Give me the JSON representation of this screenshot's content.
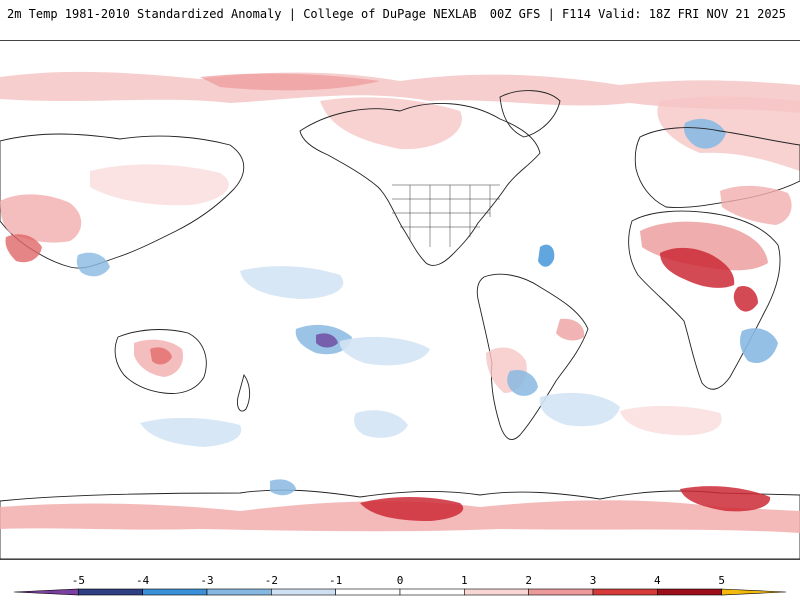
{
  "header": {
    "title": "2m Temp 1981-2010 Standardized Anomaly | College of DuPage NEXLAB",
    "run_info": "00Z GFS | F114 Valid: 18Z FRI NOV 21 2025"
  },
  "map": {
    "projection": "global-equirectangular",
    "palette": {
      "neg5": "#6a3d9a",
      "neg4": "#2c3e77",
      "neg3": "#3b8fd0",
      "neg2": "#8ab9e2",
      "neg1": "#d4e4f4",
      "zero": "#ffffff",
      "pos1": "#fbe0e0",
      "pos2": "#f2aeae",
      "pos3": "#e06666",
      "pos4": "#cc2a36",
      "pos5": "#8c0f1c"
    }
  },
  "colorbar": {
    "ticks": [
      "-5",
      "-4",
      "-3",
      "-2",
      "-1",
      "0",
      "1",
      "2",
      "3",
      "4",
      "5"
    ],
    "colors": [
      "#7b3fa0",
      "#2d3f80",
      "#3a90d6",
      "#86b7e0",
      "#cfe0f2",
      "#ffffff",
      "#ffffff",
      "#f8d6d6",
      "#ec9999",
      "#d43a3a",
      "#9c0f1a",
      "#f2b90e"
    ]
  }
}
